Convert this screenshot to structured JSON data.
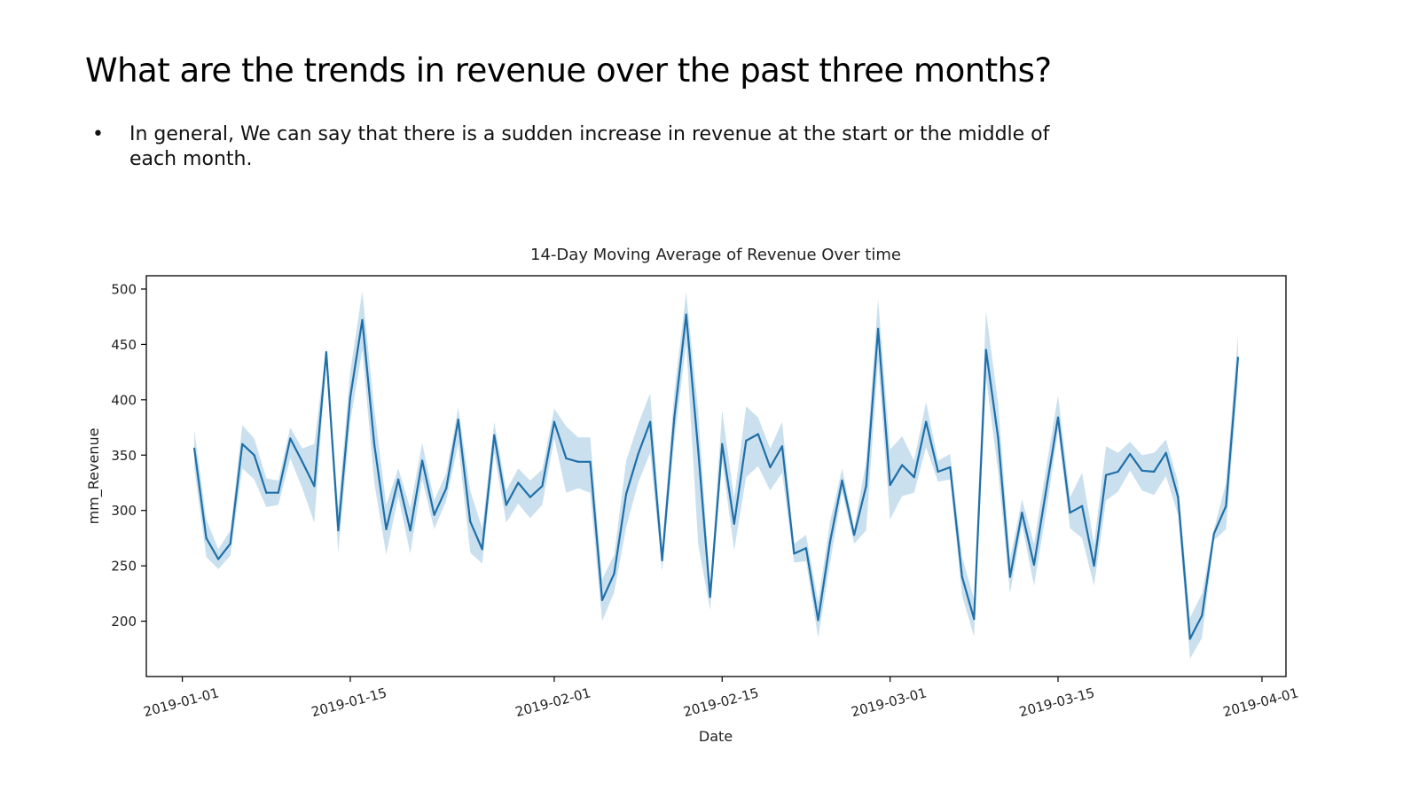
{
  "slide": {
    "title": "What are the trends in revenue over the past three months?",
    "bullets": [
      "In general, We can say that there is a sudden increase in revenue at the start or the middle of each month."
    ]
  },
  "colors": {
    "line": "#1f6fa8",
    "band": "#a6cbe3"
  },
  "chart_data": {
    "type": "line",
    "title": "14-Day Moving Average of Revenue Over time",
    "xlabel": "Date",
    "ylabel": "mm_Revenue",
    "xlim": [
      "2018-12-29",
      "2019-04-03"
    ],
    "ylim": [
      150,
      512
    ],
    "x_ticks": [
      "2019-01-01",
      "2019-01-15",
      "2019-02-01",
      "2019-02-15",
      "2019-03-01",
      "2019-03-15",
      "2019-04-01"
    ],
    "y_ticks": [
      200,
      250,
      300,
      350,
      400,
      450,
      500
    ],
    "grid": false,
    "confidence_band": true,
    "series": [
      {
        "x": [
          "2019-01-02",
          "2019-01-03",
          "2019-01-04",
          "2019-01-05",
          "2019-01-06",
          "2019-01-07",
          "2019-01-08",
          "2019-01-09",
          "2019-01-10",
          "2019-01-11",
          "2019-01-12",
          "2019-01-13",
          "2019-01-14",
          "2019-01-15",
          "2019-01-16",
          "2019-01-17",
          "2019-01-18",
          "2019-01-19",
          "2019-01-20",
          "2019-01-21",
          "2019-01-22",
          "2019-01-23",
          "2019-01-24",
          "2019-01-25",
          "2019-01-26",
          "2019-01-27",
          "2019-01-28",
          "2019-01-29",
          "2019-01-30",
          "2019-01-31",
          "2019-02-01",
          "2019-02-02",
          "2019-02-03",
          "2019-02-04",
          "2019-02-05",
          "2019-02-06",
          "2019-02-07",
          "2019-02-08",
          "2019-02-09",
          "2019-02-10",
          "2019-02-11",
          "2019-02-12",
          "2019-02-13",
          "2019-02-14",
          "2019-02-15",
          "2019-02-16",
          "2019-02-17",
          "2019-02-18",
          "2019-02-19",
          "2019-02-20",
          "2019-02-21",
          "2019-02-22",
          "2019-02-23",
          "2019-02-24",
          "2019-02-25",
          "2019-02-26",
          "2019-02-27",
          "2019-02-28",
          "2019-03-01",
          "2019-03-02",
          "2019-03-03",
          "2019-03-04",
          "2019-03-05",
          "2019-03-06",
          "2019-03-07",
          "2019-03-08",
          "2019-03-09",
          "2019-03-10",
          "2019-03-11",
          "2019-03-12",
          "2019-03-13",
          "2019-03-14",
          "2019-03-15",
          "2019-03-16",
          "2019-03-17",
          "2019-03-18",
          "2019-03-19",
          "2019-03-20",
          "2019-03-21",
          "2019-03-22",
          "2019-03-23",
          "2019-03-24",
          "2019-03-25",
          "2019-03-26",
          "2019-03-27",
          "2019-03-28",
          "2019-03-29",
          "2019-03-30"
        ],
        "values": [
          356,
          275,
          256,
          270,
          360,
          350,
          316,
          316,
          365,
          344,
          322,
          443,
          282,
          402,
          472,
          360,
          283,
          328,
          282,
          345,
          296,
          320,
          382,
          290,
          265,
          368,
          305,
          325,
          312,
          322,
          380,
          347,
          344,
          344,
          219,
          243,
          315,
          351,
          380,
          255,
          383,
          477,
          355,
          222,
          360,
          288,
          363,
          369,
          339,
          358,
          261,
          266,
          201,
          272,
          327,
          278,
          322,
          464,
          323,
          341,
          330,
          380,
          335,
          339,
          240,
          202,
          445,
          366,
          240,
          298,
          251,
          318,
          384,
          298,
          304,
          250,
          332,
          335,
          351,
          336,
          335,
          352,
          312,
          184,
          205,
          279,
          304,
          438
        ],
        "lower": [
          338,
          258,
          247,
          259,
          338,
          328,
          303,
          305,
          347,
          320,
          289,
          435,
          262,
          380,
          445,
          325,
          260,
          313,
          261,
          328,
          283,
          309,
          360,
          262,
          252,
          352,
          289,
          306,
          293,
          305,
          365,
          316,
          320,
          316,
          200,
          226,
          285,
          325,
          352,
          245,
          362,
          451,
          270,
          210,
          345,
          264,
          330,
          340,
          318,
          334,
          253,
          254,
          185,
          253,
          317,
          270,
          282,
          435,
          292,
          313,
          316,
          357,
          326,
          328,
          223,
          186,
          420,
          335,
          225,
          287,
          232,
          298,
          372,
          284,
          275,
          232,
          309,
          317,
          336,
          318,
          314,
          331,
          296,
          166,
          185,
          273,
          283,
          417
        ],
        "upper": [
          373,
          292,
          265,
          282,
          377,
          365,
          329,
          327,
          375,
          356,
          360,
          448,
          302,
          425,
          498,
          392,
          305,
          338,
          302,
          361,
          309,
          334,
          393,
          318,
          284,
          380,
          318,
          338,
          327,
          337,
          392,
          376,
          366,
          366,
          238,
          260,
          345,
          378,
          406,
          267,
          406,
          497,
          390,
          232,
          390,
          311,
          394,
          384,
          356,
          380,
          270,
          278,
          217,
          290,
          338,
          284,
          344,
          491,
          355,
          367,
          345,
          398,
          345,
          351,
          258,
          220,
          480,
          397,
          256,
          310,
          270,
          338,
          404,
          312,
          334,
          270,
          358,
          352,
          362,
          350,
          352,
          364,
          326,
          203,
          225,
          283,
          325,
          458
        ]
      }
    ]
  }
}
